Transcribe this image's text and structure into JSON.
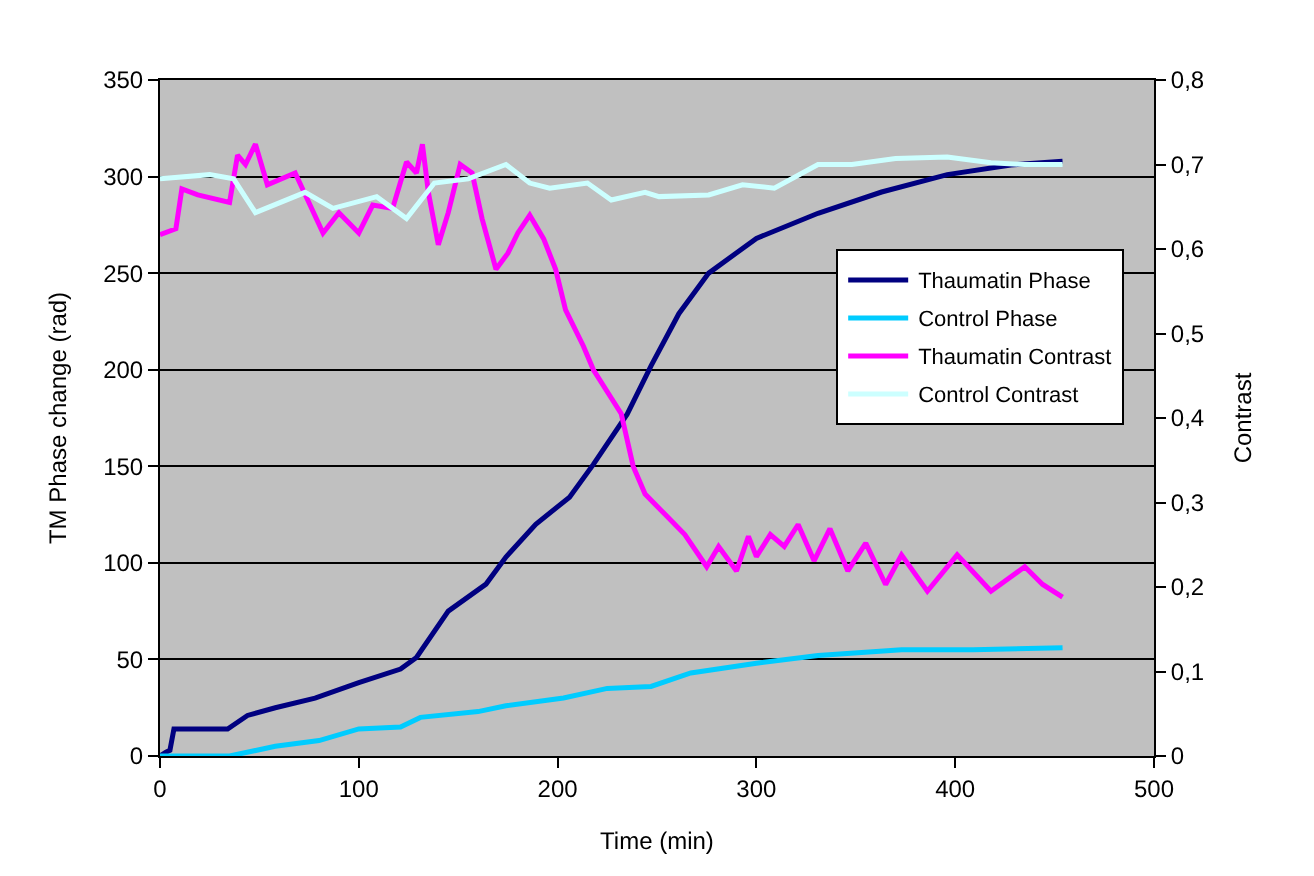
{
  "chart_data": {
    "type": "line",
    "xlabel": "Time (min)",
    "ylabel": "TM Phase change (rad)",
    "y2label": "Contrast",
    "xlim": [
      0,
      500
    ],
    "xticks": [
      0,
      100,
      200,
      300,
      400,
      500
    ],
    "ylim": [
      0,
      350
    ],
    "yticks": [
      0,
      50,
      100,
      150,
      200,
      250,
      300,
      350
    ],
    "y2lim": [
      0,
      0.8
    ],
    "y2ticks": [
      0,
      {
        "value": 0.1,
        "label": "0,1"
      },
      {
        "value": 0.2,
        "label": "0,2"
      },
      {
        "value": 0.3,
        "label": "0,3"
      },
      {
        "value": 0.4,
        "label": "0,4"
      },
      {
        "value": 0.5,
        "label": "0,5"
      },
      {
        "value": 0.6,
        "label": "0,6"
      },
      {
        "value": 0.7,
        "label": "0,7"
      },
      {
        "value": 0.8,
        "label": "0,8"
      }
    ],
    "grid": "y",
    "legend": "right",
    "marker": "none",
    "line_style": "solid",
    "series": [
      {
        "name": "Thaumatin Phase",
        "color": "#000080",
        "x": [
          0,
          3,
          5,
          7,
          34,
          44,
          58,
          78,
          100,
          121,
          129,
          145,
          164,
          174,
          189,
          206,
          218,
          235,
          247,
          261,
          276,
          300,
          331,
          363,
          396,
          428,
          454
        ],
        "values": [
          0,
          2,
          3,
          14,
          14,
          21,
          25,
          30,
          38,
          45,
          51,
          75,
          89,
          103,
          120,
          134,
          151,
          177,
          202,
          229,
          250,
          268,
          281,
          292,
          301,
          306,
          308
        ]
      },
      {
        "name": "Control Phase",
        "color": "#00ccff",
        "x": [
          0,
          35,
          58,
          80,
          100,
          121,
          131,
          160,
          174,
          203,
          225,
          247,
          267,
          300,
          331,
          373,
          409,
          454
        ],
        "values": [
          0,
          0,
          5,
          8,
          14,
          15,
          20,
          23,
          26,
          30,
          35,
          36,
          43,
          48,
          52,
          55,
          55,
          56
        ]
      },
      {
        "name": "Thaumatin Contrast",
        "color": "#ff00ff",
        "axis": "y2",
        "x": [
          0,
          8,
          11,
          19,
          35,
          39,
          43,
          48,
          54,
          68,
          82,
          90,
          100,
          107,
          117,
          124,
          129,
          132,
          135,
          140,
          145,
          151,
          157,
          162,
          169,
          175,
          180,
          186,
          193,
          199,
          204,
          213,
          218,
          232,
          238,
          244,
          254,
          264,
          275,
          281,
          290,
          296,
          300,
          307,
          314,
          321,
          329,
          337,
          346,
          355,
          365,
          373,
          386,
          401,
          418,
          435,
          444,
          454
        ],
        "values": [
          0.617,
          0.624,
          0.671,
          0.664,
          0.655,
          0.711,
          0.7,
          0.724,
          0.676,
          0.69,
          0.619,
          0.643,
          0.619,
          0.652,
          0.648,
          0.703,
          0.69,
          0.724,
          0.667,
          0.605,
          0.643,
          0.7,
          0.69,
          0.636,
          0.576,
          0.595,
          0.619,
          0.64,
          0.612,
          0.576,
          0.528,
          0.485,
          0.457,
          0.405,
          0.343,
          0.31,
          0.286,
          0.262,
          0.224,
          0.248,
          0.219,
          0.26,
          0.236,
          0.262,
          0.248,
          0.274,
          0.231,
          0.269,
          0.219,
          0.252,
          0.203,
          0.238,
          0.195,
          0.238,
          0.195,
          0.224,
          0.203,
          0.188
        ]
      },
      {
        "name": "Control Contrast",
        "color": "#ccffff",
        "axis": "y2",
        "x": [
          0,
          25,
          37,
          48,
          73,
          87,
          109,
          124,
          138,
          155,
          174,
          186,
          196,
          215,
          227,
          244,
          251,
          276,
          293,
          309,
          331,
          348,
          370,
          396,
          418,
          435,
          454
        ],
        "values": [
          0.683,
          0.688,
          0.683,
          0.643,
          0.667,
          0.648,
          0.662,
          0.636,
          0.678,
          0.683,
          0.7,
          0.678,
          0.672,
          0.678,
          0.658,
          0.667,
          0.662,
          0.664,
          0.676,
          0.672,
          0.7,
          0.7,
          0.707,
          0.709,
          0.702,
          0.7,
          0.7
        ]
      }
    ]
  }
}
